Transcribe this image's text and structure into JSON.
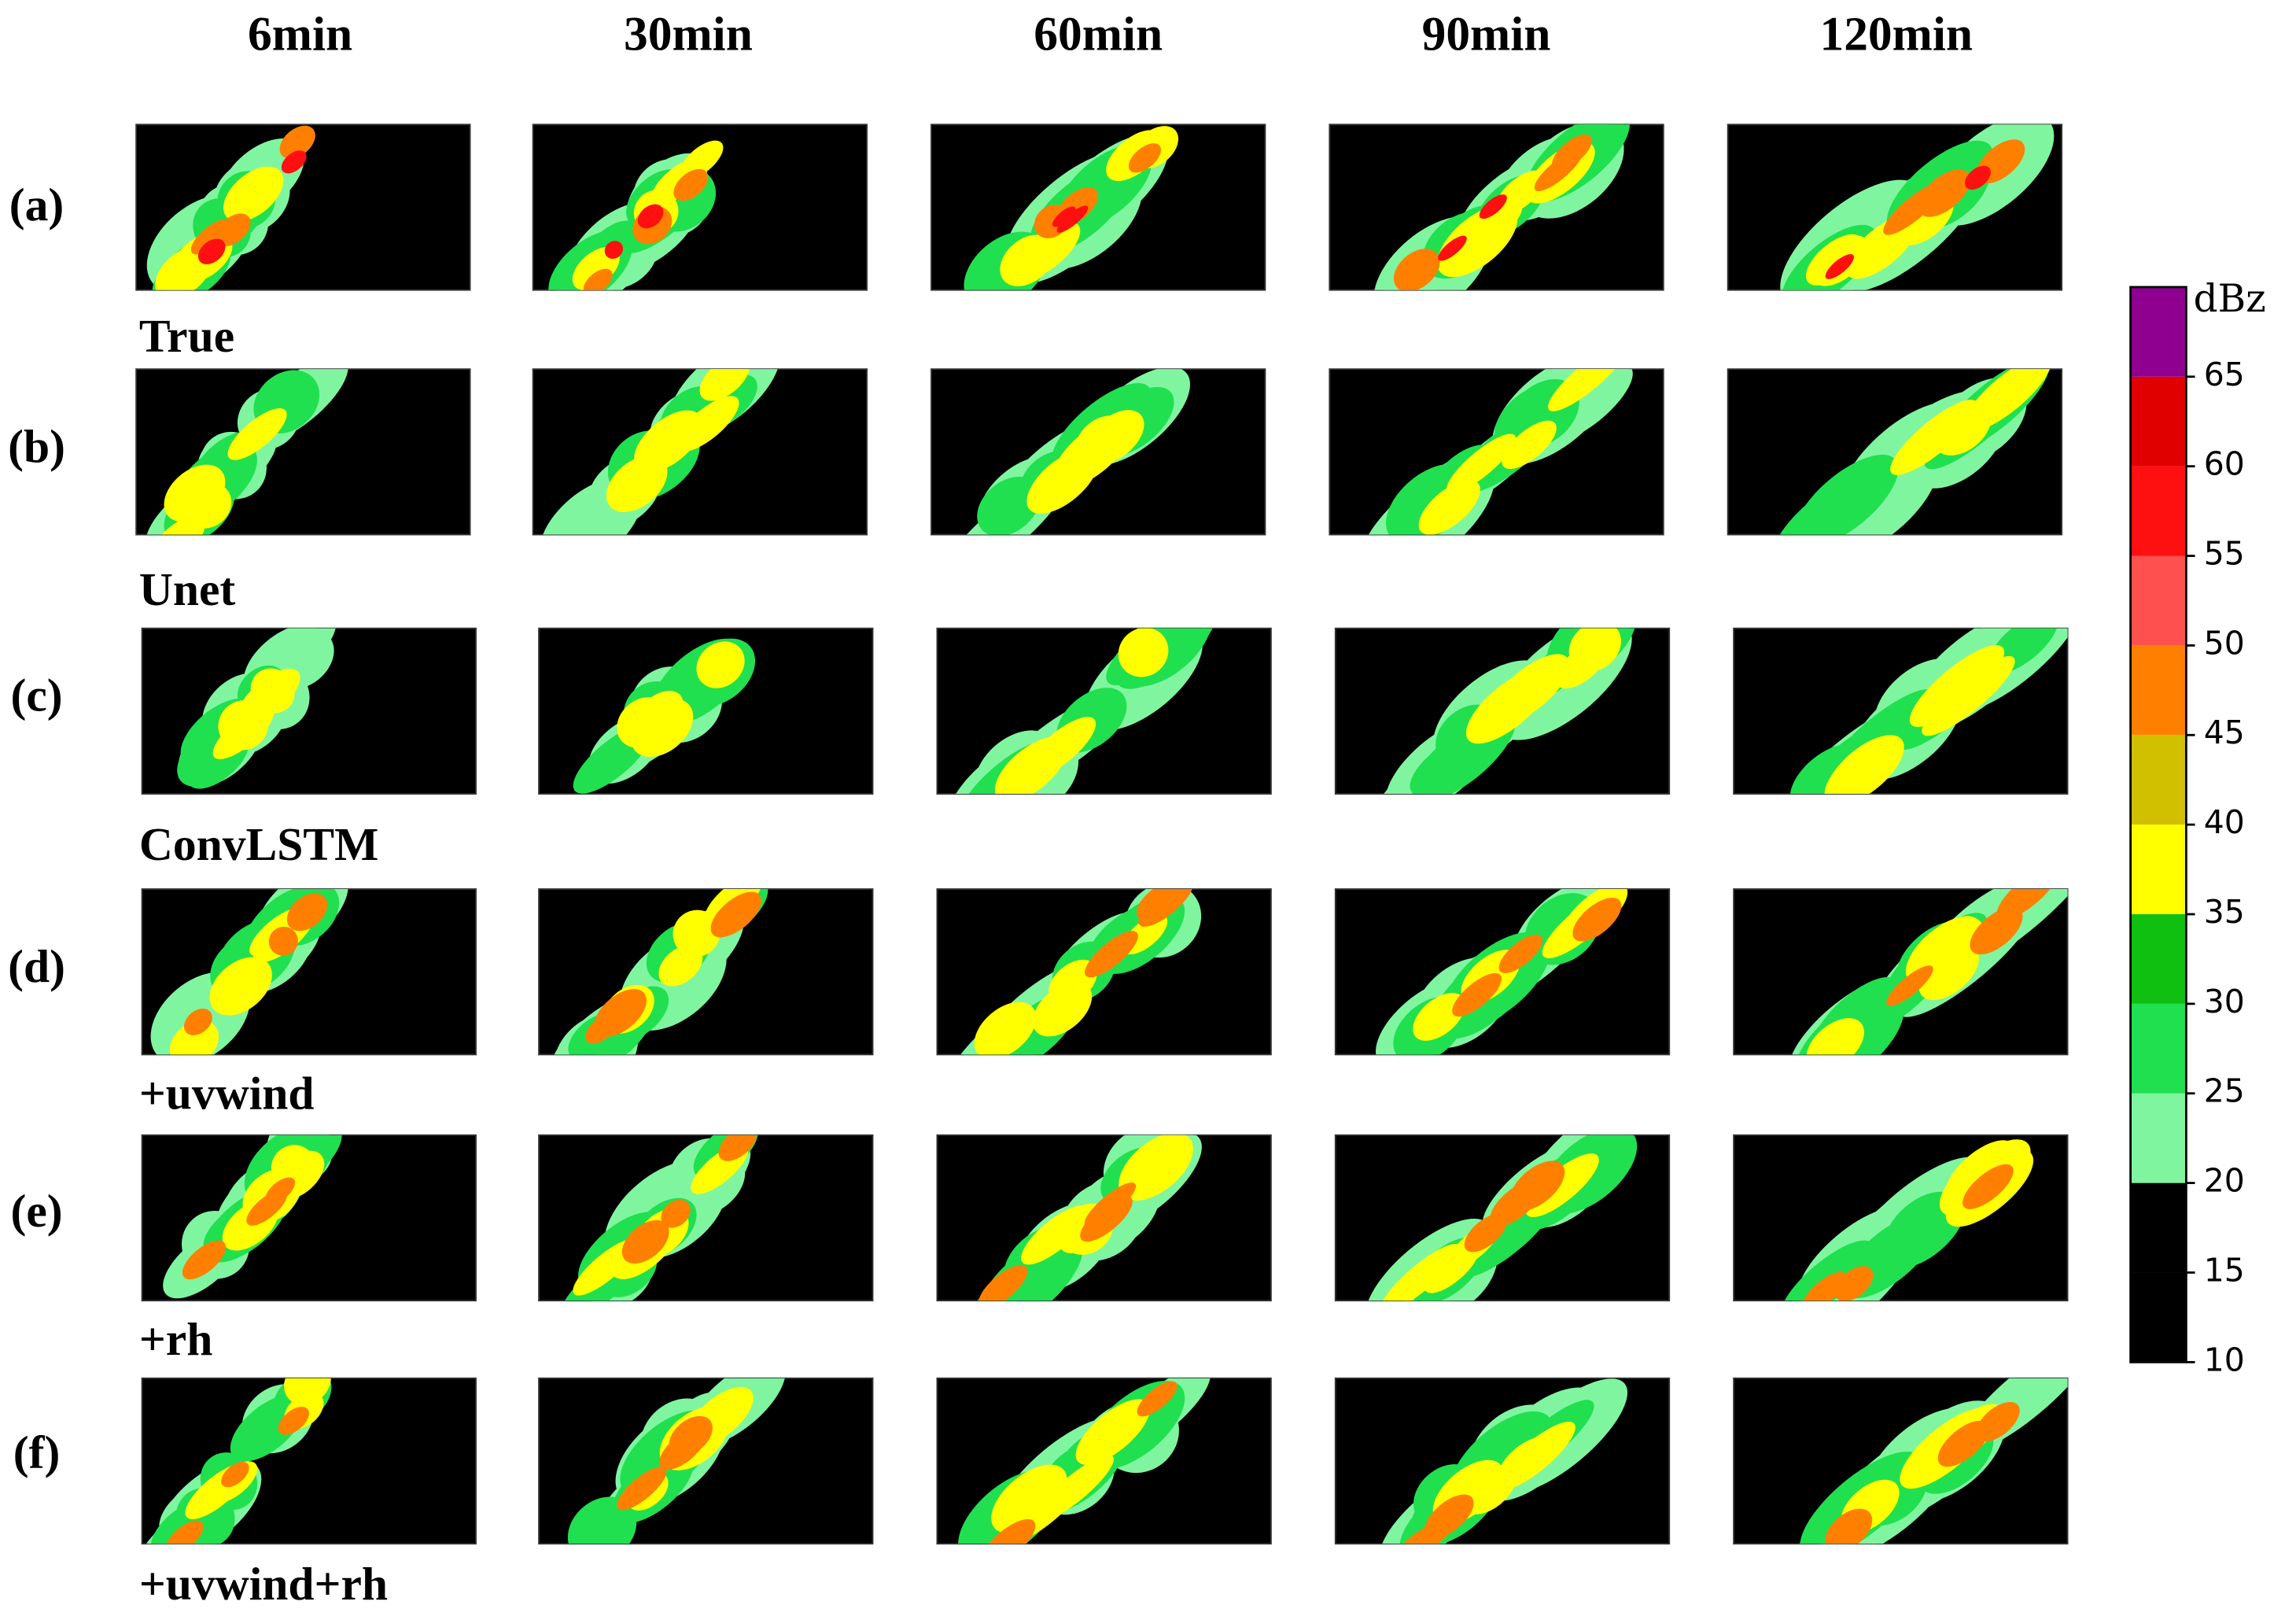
{
  "columns": [
    "6min",
    "30min",
    "60min",
    "90min",
    "120min"
  ],
  "rows": [
    {
      "tag": "(a)",
      "label": "True"
    },
    {
      "tag": "(b)",
      "label": "Unet"
    },
    {
      "tag": "(c)",
      "label": "ConvLSTM"
    },
    {
      "tag": "(d)",
      "label": "+uvwind"
    },
    {
      "tag": "(e)",
      "label": "+rh"
    },
    {
      "tag": "(f)",
      "label": "+uvwind+rh"
    }
  ],
  "colorbar": {
    "unit": "dBz",
    "lim": [
      10,
      70
    ],
    "ticks": [
      10,
      15,
      20,
      25,
      30,
      35,
      40,
      45,
      50,
      55,
      60,
      65
    ],
    "colors": [
      "#000000",
      "#000000",
      "#80f5a0",
      "#20e050",
      "#10c010",
      "#ffff00",
      "#d0c000",
      "#ff8000",
      "#ff5050",
      "#ff1010",
      "#e00000",
      "#900090"
    ]
  }
}
